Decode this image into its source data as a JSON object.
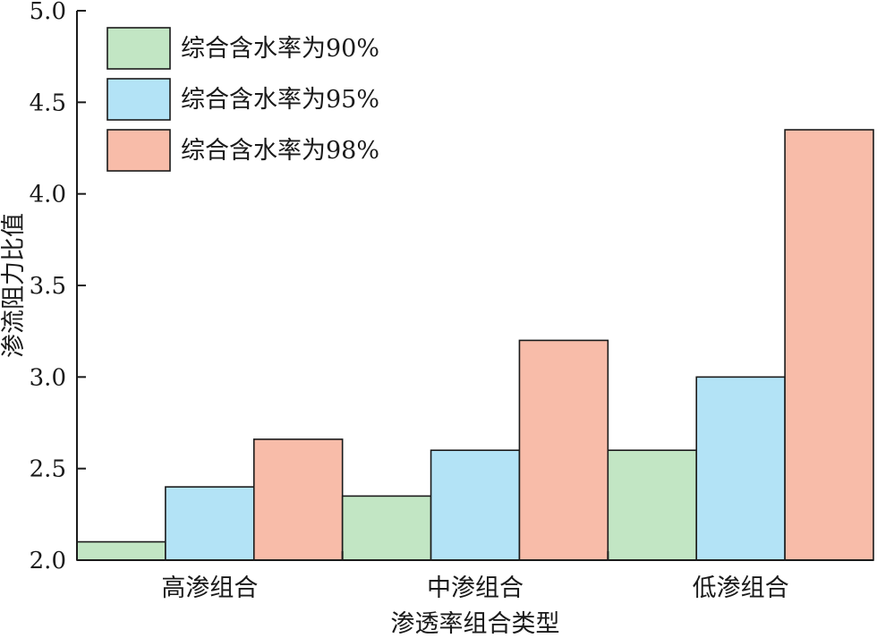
{
  "chart_data": {
    "type": "bar",
    "categories": [
      "高渗组合",
      "中渗组合",
      "低渗组合"
    ],
    "series": [
      {
        "name": "综合含水率为90%",
        "values": [
          2.1,
          2.35,
          2.6
        ],
        "color": "#c2e6c4"
      },
      {
        "name": "综合含水率为95%",
        "values": [
          2.4,
          2.6,
          3.0
        ],
        "color": "#b3e3f6"
      },
      {
        "name": "综合含水率为98%",
        "values": [
          2.66,
          3.2,
          4.35
        ],
        "color": "#f8bca9"
      }
    ],
    "xlabel": "渗透率组合类型",
    "ylabel": "渗流阻力比值",
    "ylim": [
      2.0,
      5.0
    ],
    "yticks": [
      2.0,
      2.5,
      3.0,
      3.5,
      4.0,
      4.5,
      5.0
    ],
    "ytick_labels": [
      "2.0",
      "2.5",
      "3.0",
      "3.5",
      "4.0",
      "4.5",
      "5.0"
    ],
    "legend_position": "top-left",
    "grid": false
  }
}
